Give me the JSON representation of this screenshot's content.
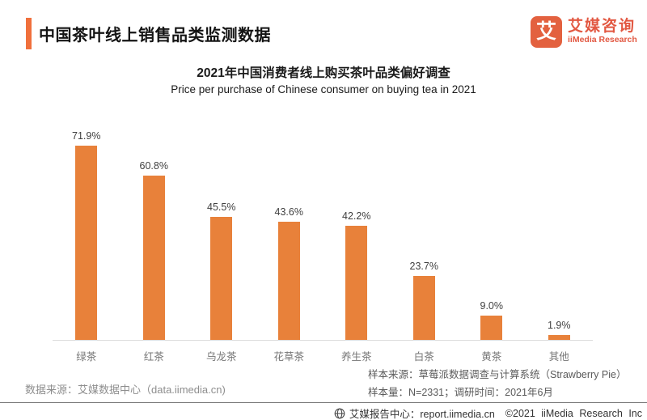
{
  "header": {
    "title": "中国茶叶线上销售品类监测数据",
    "logo": {
      "glyph": "艾",
      "name_cn": "艾媒咨询",
      "name_en": "iiMedia Research"
    }
  },
  "chart": {
    "title": "2021年中国消费者线上购买茶叶品类偏好调查",
    "subtitle": "Price per purchase of Chinese consumer on buying tea in 2021"
  },
  "chart_data": {
    "type": "bar",
    "title": "2021年中国消费者线上购买茶叶品类偏好调查",
    "subtitle": "Price per purchase of Chinese consumer on buying tea in 2021",
    "categories": [
      "绿茶",
      "红茶",
      "乌龙茶",
      "花草茶",
      "养生茶",
      "白茶",
      "黄茶",
      "其他"
    ],
    "values": [
      71.9,
      60.8,
      45.5,
      43.6,
      42.2,
      23.7,
      9.0,
      1.9
    ],
    "value_labels": [
      "71.9%",
      "60.8%",
      "45.5%",
      "43.6%",
      "42.2%",
      "23.7%",
      "9.0%",
      "1.9%"
    ],
    "unit": "%",
    "xlabel": "",
    "ylabel": "",
    "ylim": [
      0,
      80
    ],
    "grid": false,
    "legend": false,
    "bar_color": "#E8813A",
    "baseline_color": "#DCDCDC"
  },
  "notes": {
    "source_left": "数据来源：艾媒数据中心（data.iimedia.cn)",
    "sample_source": "样本来源：草莓派数据调查与计算系统（Strawberry Pie）",
    "sample_info": "样本量：N=2331；调研时间：2021年6月"
  },
  "footer": {
    "report_center": "艾媒报告中心：report.iimedia.cn",
    "copyright": "©2021 iiMedia Research Inc"
  },
  "colors": {
    "accent_orange": "#F0703C",
    "bar_orange": "#E8813A",
    "logo_orange": "#E25842"
  }
}
